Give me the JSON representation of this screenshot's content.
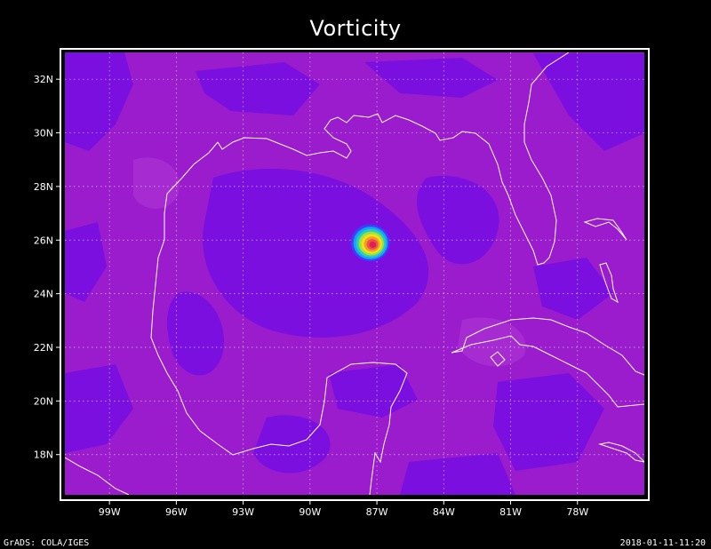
{
  "title": "Vorticity",
  "footer": {
    "left": "GrADS: COLA/IGES",
    "right": "2018-01-11-11:20"
  },
  "map": {
    "lon_range": [
      -101,
      -75
    ],
    "lat_range": [
      16.5,
      33
    ],
    "x_ticks": [
      {
        "value": -99,
        "label": "99W"
      },
      {
        "value": -96,
        "label": "96W"
      },
      {
        "value": -93,
        "label": "93W"
      },
      {
        "value": -90,
        "label": "90W"
      },
      {
        "value": -87,
        "label": "87W"
      },
      {
        "value": -84,
        "label": "84W"
      },
      {
        "value": -81,
        "label": "81W"
      },
      {
        "value": -78,
        "label": "78W"
      }
    ],
    "y_ticks": [
      {
        "value": 18,
        "label": "18N"
      },
      {
        "value": 20,
        "label": "20N"
      },
      {
        "value": 22,
        "label": "22N"
      },
      {
        "value": 24,
        "label": "24N"
      },
      {
        "value": 26,
        "label": "26N"
      },
      {
        "value": 28,
        "label": "28N"
      },
      {
        "value": 30,
        "label": "30N"
      },
      {
        "value": 32,
        "label": "32N"
      }
    ],
    "grid": true,
    "colors": {
      "background": "#9a1ccd",
      "low": "#7a0fe0",
      "vortex_rings": [
        "#3e3ef5",
        "#1aa0ff",
        "#20d0c0",
        "#a8e030",
        "#f0e020",
        "#f0a020",
        "#f05050",
        "#e02050"
      ]
    },
    "vortex_center": {
      "lon": -87.3,
      "lat": 25.9
    }
  }
}
